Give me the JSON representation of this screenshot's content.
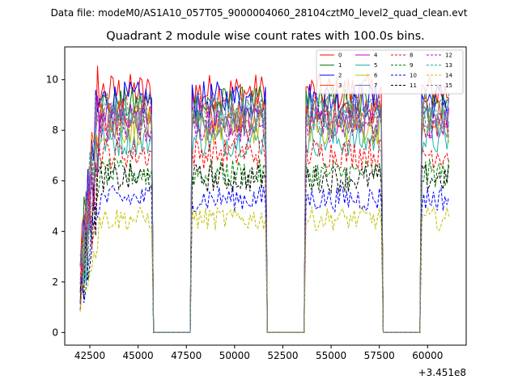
{
  "chart_data": {
    "type": "line",
    "suptitle": "Data file: modeM0/AS1A10_057T05_9000004060_28104cztM0_level2_quad_clean.evt",
    "title": "Quadrant 2 module wise count rates with 100.0s bins.",
    "xlabel": "",
    "ylabel": "",
    "x_offset_label": "+3.451e8",
    "xlim": [
      41200,
      62000
    ],
    "ylim": [
      -0.5,
      11.3
    ],
    "xticks": [
      42500,
      45000,
      47500,
      50000,
      52500,
      55000,
      57500,
      60000
    ],
    "yticks": [
      0,
      2,
      4,
      6,
      8,
      10
    ],
    "time_range": [
      42000,
      61100
    ],
    "bin_seconds": 100,
    "active_intervals": [
      [
        42000,
        45700
      ],
      [
        47800,
        51600
      ],
      [
        53700,
        57600
      ],
      [
        59700,
        61100
      ]
    ],
    "legend": {
      "location": "upper right",
      "ncol": 4
    },
    "series": [
      {
        "name": "0",
        "mean": 9.5,
        "color": "#ff0000",
        "linestyle": "solid"
      },
      {
        "name": "1",
        "mean": 9.0,
        "color": "#008000",
        "linestyle": "solid"
      },
      {
        "name": "2",
        "mean": 9.2,
        "color": "#0000ff",
        "linestyle": "solid"
      },
      {
        "name": "3",
        "mean": 8.6,
        "color": "#ff4500",
        "linestyle": "solid"
      },
      {
        "name": "4",
        "mean": 8.4,
        "color": "#bf00bf",
        "linestyle": "solid"
      },
      {
        "name": "5",
        "mean": 7.6,
        "color": "#20b2aa",
        "linestyle": "solid"
      },
      {
        "name": "6",
        "mean": 8.1,
        "color": "#bfbf00",
        "linestyle": "solid"
      },
      {
        "name": "7",
        "mean": 8.3,
        "color": "#708090",
        "linestyle": "solid"
      },
      {
        "name": "8",
        "mean": 7.1,
        "color": "#ff0000",
        "linestyle": "dashed"
      },
      {
        "name": "9",
        "mean": 6.3,
        "color": "#008000",
        "linestyle": "dashed"
      },
      {
        "name": "10",
        "mean": 5.3,
        "color": "#0000ff",
        "linestyle": "dashed"
      },
      {
        "name": "11",
        "mean": 6.1,
        "color": "#000000",
        "linestyle": "dashed"
      },
      {
        "name": "12",
        "mean": 8.2,
        "color": "#bf00bf",
        "linestyle": "dashed"
      },
      {
        "name": "13",
        "mean": 8.6,
        "color": "#20b2aa",
        "linestyle": "dashed"
      },
      {
        "name": "14",
        "mean": 4.5,
        "color": "#bfbf00",
        "linestyle": "dashed"
      },
      {
        "name": "15",
        "mean": 8.8,
        "color": "#708090",
        "linestyle": "dashed"
      }
    ]
  }
}
